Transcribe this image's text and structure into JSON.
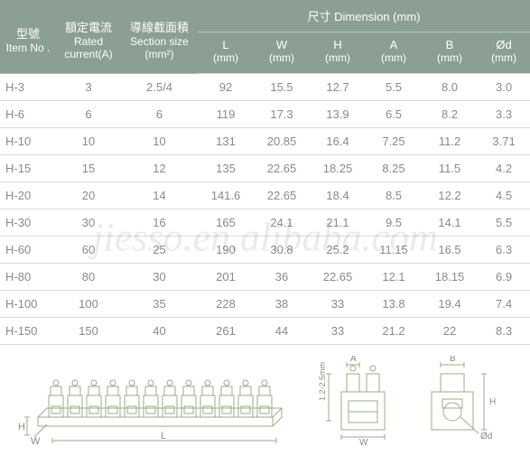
{
  "watermark": "jiesso.en.alibaba.com",
  "header": {
    "item_no": {
      "l1": "型號",
      "l2": "Item No ."
    },
    "rated": {
      "l1": "額定電流",
      "l2": "Rated",
      "l3": "current(A)"
    },
    "section": {
      "l1": "導線截面積",
      "l2": "Section size",
      "l3": "(mm²)"
    },
    "dim": "尺寸  Dimension (mm)",
    "cols": [
      {
        "l1": "L",
        "l2": "(mm)"
      },
      {
        "l1": "W",
        "l2": "(mm)"
      },
      {
        "l1": "H",
        "l2": "(mm)"
      },
      {
        "l1": "A",
        "l2": "(mm)"
      },
      {
        "l1": "B",
        "l2": "(mm)"
      },
      {
        "l1": "Ød",
        "l2": "(mm)"
      }
    ]
  },
  "rows": [
    {
      "item": "H-3",
      "rated": "3",
      "section": "2.5/4",
      "L": "92",
      "W": "15.5",
      "H": "12.7",
      "A": "5.5",
      "B": "8.0",
      "d": "3.0"
    },
    {
      "item": "H-6",
      "rated": "6",
      "section": "6",
      "L": "119",
      "W": "17.3",
      "H": "13.9",
      "A": "6.5",
      "B": "8.2",
      "d": "3.3"
    },
    {
      "item": "H-10",
      "rated": "10",
      "section": "10",
      "L": "131",
      "W": "20.85",
      "H": "16.4",
      "A": "7.25",
      "B": "11.2",
      "d": "3.71"
    },
    {
      "item": "H-15",
      "rated": "15",
      "section": "12",
      "L": "135",
      "W": "22.65",
      "H": "18.25",
      "A": "8.25",
      "B": "11.5",
      "d": "4.2"
    },
    {
      "item": "H-20",
      "rated": "20",
      "section": "14",
      "L": "141.6",
      "W": "22.65",
      "H": "18.4",
      "A": "8.5",
      "B": "12.2",
      "d": "4.5"
    },
    {
      "item": "H-30",
      "rated": "30",
      "section": "16",
      "L": "165",
      "W": "24.1",
      "H": "21.1",
      "A": "9.5",
      "B": "14.1",
      "d": "5.5"
    },
    {
      "item": "H-60",
      "rated": "60",
      "section": "25",
      "L": "190",
      "W": "30.8",
      "H": "25.2",
      "A": "11.15",
      "B": "16.5",
      "d": "6.3"
    },
    {
      "item": "H-80",
      "rated": "80",
      "section": "30",
      "L": "201",
      "W": "36",
      "H": "22.65",
      "A": "12.1",
      "B": "18.15",
      "d": "6.9"
    },
    {
      "item": "H-100",
      "rated": "100",
      "section": "35",
      "L": "228",
      "W": "38",
      "H": "33",
      "A": "13.8",
      "B": "19.4",
      "d": "7.4"
    },
    {
      "item": "H-150",
      "rated": "150",
      "section": "40",
      "L": "261",
      "W": "44",
      "H": "33",
      "A": "21.2",
      "B": "22",
      "d": "8.3"
    }
  ],
  "diagram": {
    "labels": {
      "H": "H",
      "W": "W",
      "L": "L",
      "A": "A",
      "B": "B",
      "d": "Ød",
      "spacing": "1.2-2.5mm"
    },
    "stroke": "#9aae86",
    "stroke_width": 1
  }
}
